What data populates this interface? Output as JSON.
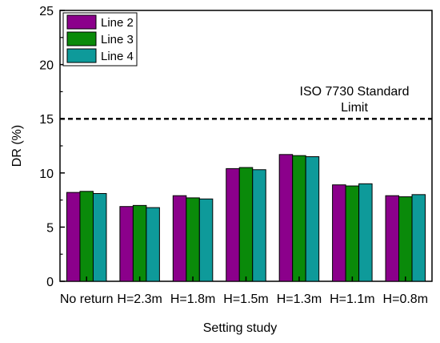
{
  "chart_data": {
    "type": "bar",
    "title": "",
    "xlabel": "Setting study",
    "ylabel": "DR (%)",
    "ylim": [
      0,
      25
    ],
    "yticks": [
      "0",
      "5",
      "10",
      "15",
      "20",
      "25"
    ],
    "categories": [
      "No return",
      "H=2.3m",
      "H=1.8m",
      "H=1.5m",
      "H=1.3m",
      "H=1.1m",
      "H=0.8m"
    ],
    "series": [
      {
        "name": "Line 2",
        "color": "#8b008b",
        "values": [
          8.2,
          6.9,
          7.9,
          10.4,
          11.7,
          8.9,
          7.9
        ]
      },
      {
        "name": "Line 3",
        "color": "#0a8a0a",
        "values": [
          8.3,
          7.0,
          7.7,
          10.5,
          11.6,
          8.8,
          7.8
        ]
      },
      {
        "name": "Line 4",
        "color": "#0e9a9a",
        "values": [
          8.1,
          6.8,
          7.6,
          10.3,
          11.5,
          9.0,
          8.0
        ]
      }
    ],
    "reference_line": {
      "value": 15,
      "style": "dashed",
      "label_line1": "ISO 7730 Standard",
      "label_line2": "Limit"
    },
    "legend_position": "top-left",
    "grid": false
  }
}
